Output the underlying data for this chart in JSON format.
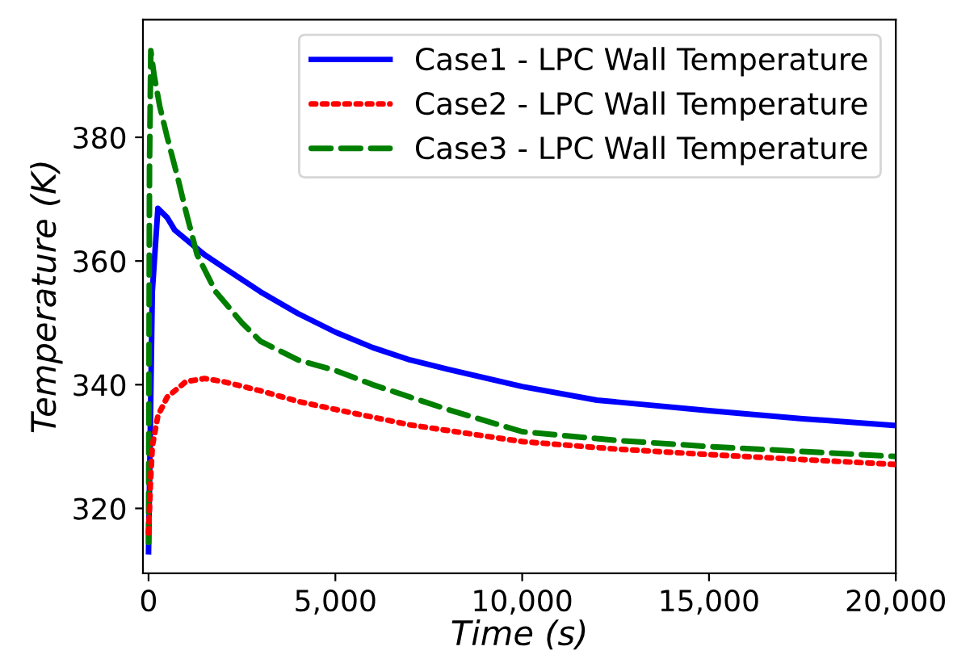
{
  "chart_data": {
    "type": "line",
    "xlabel": "Time (s)",
    "ylabel": "Temperature (K)",
    "xlim": [
      -150,
      20000
    ],
    "ylim": [
      309.5,
      399
    ],
    "xticks": [
      {
        "value": 0,
        "label": "0"
      },
      {
        "value": 5000,
        "label": "5,000"
      },
      {
        "value": 10000,
        "label": "10,000"
      },
      {
        "value": 15000,
        "label": "15,000"
      },
      {
        "value": 20000,
        "label": "20,000"
      }
    ],
    "yticks": [
      320,
      340,
      360,
      380
    ],
    "grid": false,
    "legend": "top right",
    "series": [
      {
        "name": "Case1 - LPC Wall Temperature",
        "color": "#0000ff",
        "line_style": "solid",
        "x": [
          0,
          100,
          250,
          500,
          700,
          1000,
          1500,
          2000,
          3000,
          4000,
          5000,
          6000,
          7000,
          8000,
          10000,
          12000,
          15000,
          17500,
          20000
        ],
        "values": [
          313,
          355,
          368.5,
          367,
          365,
          363.5,
          361,
          359,
          355,
          351.5,
          348.5,
          346,
          344,
          342.5,
          339.7,
          337.5,
          335.8,
          334.5,
          333.4
        ]
      },
      {
        "name": "Case2 - LPC Wall Temperature",
        "color": "#ff0000",
        "line_style": "dotted",
        "x": [
          0,
          50,
          100,
          250,
          500,
          1000,
          1500,
          2000,
          3000,
          4000,
          5000,
          7000,
          10000,
          12500,
          15000,
          17500,
          20000
        ],
        "values": [
          316,
          324,
          330,
          335,
          338,
          340.5,
          341,
          340.5,
          339,
          337.3,
          336,
          333.5,
          330.8,
          329.6,
          328.7,
          327.9,
          327.1
        ]
      },
      {
        "name": "Case3 - LPC Wall Temperature",
        "color": "#007f00",
        "line_style": "dashed",
        "x": [
          0,
          25,
          60,
          150,
          300,
          500,
          800,
          1000,
          1300,
          1800,
          2500,
          3000,
          4000,
          5000,
          6000,
          8000,
          10000,
          12500,
          15000,
          17500,
          20000
        ],
        "values": [
          314.5,
          375,
          394,
          390,
          385,
          380,
          373,
          368,
          361,
          355,
          350,
          347,
          344,
          342.3,
          340,
          336,
          332.4,
          331,
          330,
          329.2,
          328.4
        ]
      }
    ]
  }
}
